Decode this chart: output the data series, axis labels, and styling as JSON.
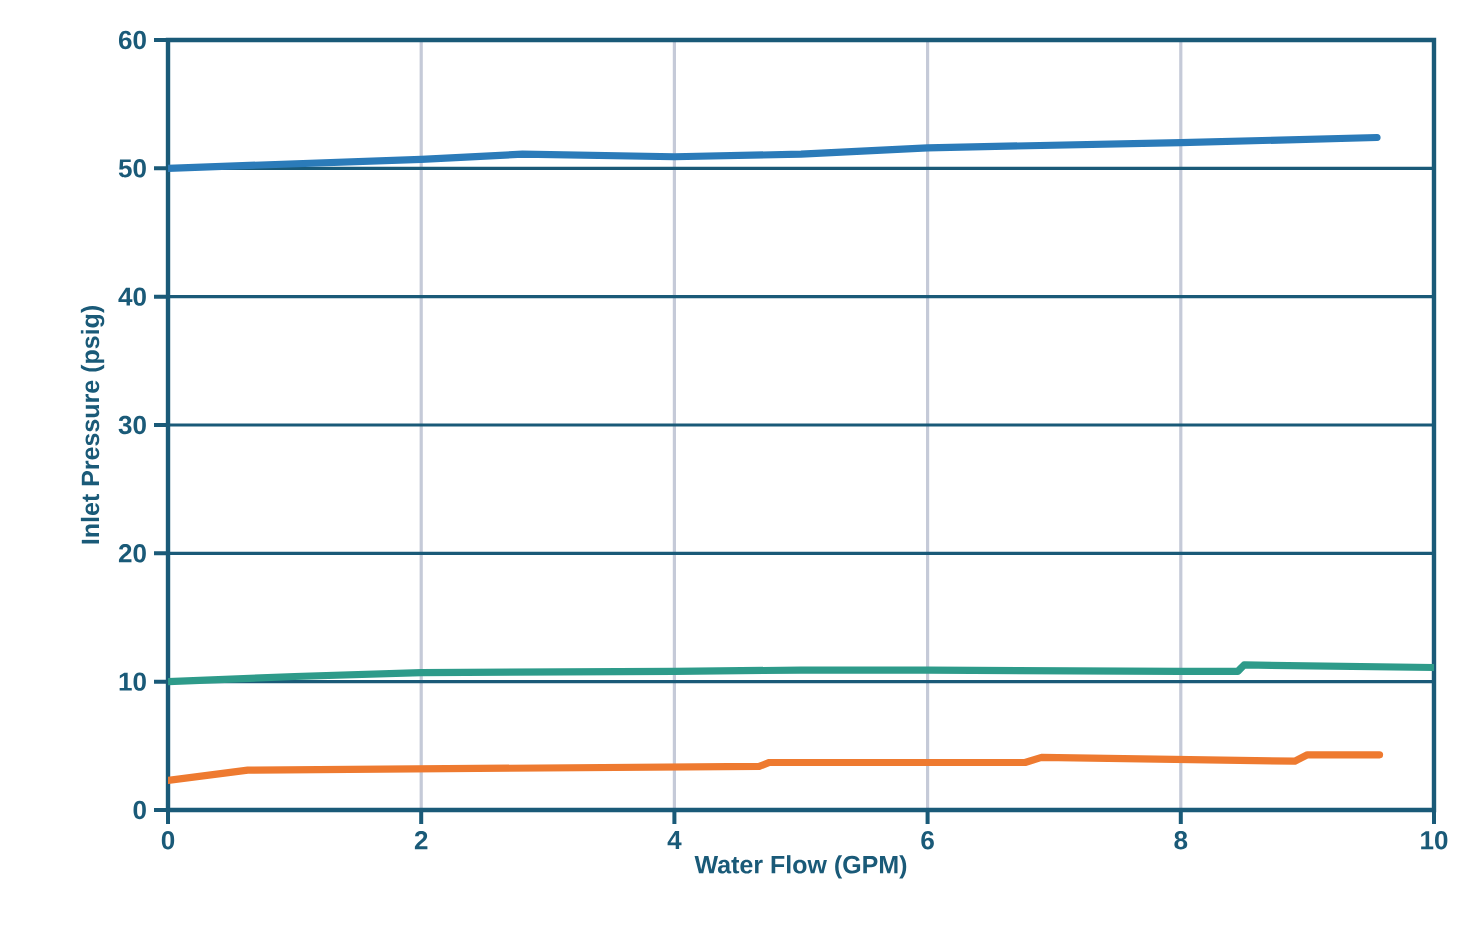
{
  "chart_data": {
    "type": "line",
    "xlabel": "Water Flow (GPM)",
    "ylabel": "Inlet Pressure (psig)",
    "xlim": [
      0,
      10
    ],
    "ylim": [
      0,
      60
    ],
    "xticks": [
      0,
      2,
      4,
      6,
      8,
      10
    ],
    "yticks": [
      0,
      10,
      20,
      30,
      40,
      50,
      60
    ],
    "grid": true,
    "line_style": "solid",
    "series": [
      {
        "color": "#2b7bb9",
        "x": [
          0,
          2,
          2.8,
          4,
          5,
          6,
          8,
          9.55
        ],
        "values": [
          50,
          50.7,
          51.1,
          50.9,
          51.1,
          51.6,
          52,
          52.4
        ]
      },
      {
        "color": "#2e9b8a",
        "x": [
          0,
          1,
          2,
          4,
          5,
          6,
          8,
          8.45,
          8.5,
          10
        ],
        "values": [
          10,
          10.4,
          10.7,
          10.8,
          10.9,
          10.9,
          10.8,
          10.8,
          11.3,
          11.1
        ]
      },
      {
        "color": "#ee7a30",
        "x": [
          0,
          0.63,
          4.67,
          4.75,
          6.77,
          6.9,
          8.9,
          9.0,
          9.57
        ],
        "values": [
          2.3,
          3.1,
          3.4,
          3.7,
          3.7,
          4.1,
          3.8,
          4.3,
          4.3
        ]
      }
    ]
  }
}
